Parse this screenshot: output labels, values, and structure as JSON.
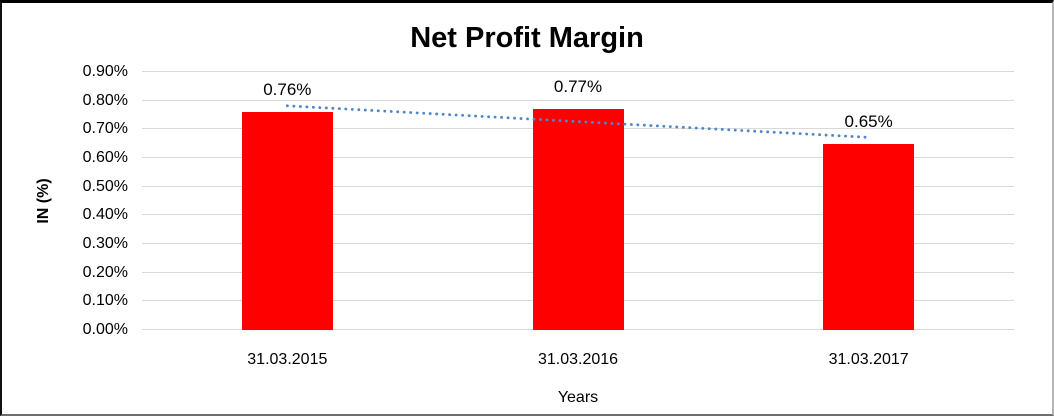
{
  "figure": {
    "background": "#FFFFFF",
    "border_color": "#000000"
  },
  "chart_data": {
    "type": "bar",
    "title": "Net Profit Margin",
    "xlabel": "Years",
    "ylabel": "IN (%)",
    "categories": [
      "31.03.2015",
      "31.03.2016",
      "31.03.2017"
    ],
    "values": [
      0.76,
      0.77,
      0.65
    ],
    "value_labels": [
      "0.76%",
      "0.77%",
      "0.65%"
    ],
    "ylim": [
      0,
      0.9
    ],
    "ytick_labels": [
      "0.00%",
      "0.10%",
      "0.20%",
      "0.30%",
      "0.40%",
      "0.50%",
      "0.60%",
      "0.70%",
      "0.80%",
      "0.90%"
    ],
    "grid": true,
    "legend": "none",
    "colors": {
      "bar": "#FF0000",
      "gridline": "#D9D9D9",
      "text": "#000000",
      "trendline": "#4E86C8"
    },
    "trendline": {
      "type": "linear",
      "style": "dotted",
      "color": "#4E86C8",
      "start_value": 0.782,
      "end_value": 0.672
    }
  }
}
